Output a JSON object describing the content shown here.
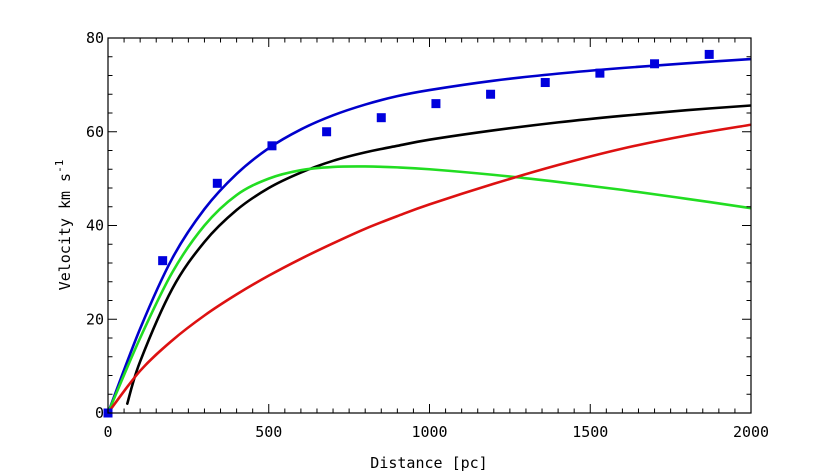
{
  "chart_data": {
    "type": "line",
    "xlabel": "Distance [pc]",
    "ylabel": "Velocity km s",
    "ylabel_superscript": "-1",
    "xlim": [
      0,
      2000
    ],
    "ylim": [
      0,
      80
    ],
    "x_ticks": [
      0,
      500,
      1000,
      1500,
      2000
    ],
    "y_ticks": [
      0,
      20,
      40,
      60,
      80
    ],
    "grid": false,
    "legend": "none",
    "series": [
      {
        "color": "#0000cc",
        "x": [
          0,
          100,
          200,
          300,
          400,
          500,
          600,
          700,
          800,
          900,
          1000,
          1200,
          1400,
          1600,
          1800,
          2000
        ],
        "y": [
          0,
          18,
          33,
          43.5,
          51,
          56.5,
          60.5,
          63.5,
          65.8,
          67.6,
          68.9,
          70.9,
          72.4,
          73.6,
          74.6,
          75.5
        ]
      },
      {
        "color": "#000000",
        "x": [
          60,
          100,
          200,
          300,
          400,
          500,
          600,
          700,
          800,
          900,
          1000,
          1200,
          1400,
          1600,
          1800,
          2000
        ],
        "y": [
          2,
          11,
          26.5,
          36.5,
          43.3,
          48,
          51.3,
          53.8,
          55.6,
          57,
          58.3,
          60.3,
          62,
          63.4,
          64.6,
          65.6
        ]
      },
      {
        "color": "#22dd22",
        "x": [
          0,
          100,
          200,
          300,
          400,
          500,
          600,
          700,
          800,
          900,
          1000,
          1200,
          1400,
          1600,
          1800,
          2000
        ],
        "y": [
          0,
          16,
          30,
          40,
          46.5,
          50,
          51.8,
          52.5,
          52.6,
          52.4,
          52,
          50.8,
          49.3,
          47.6,
          45.7,
          43.7
        ]
      },
      {
        "color": "#dd1111",
        "x": [
          0,
          100,
          200,
          300,
          400,
          500,
          600,
          700,
          800,
          900,
          1000,
          1200,
          1400,
          1600,
          1800,
          2000
        ],
        "y": [
          0,
          9,
          15.5,
          20.8,
          25.3,
          29.3,
          32.9,
          36.2,
          39.3,
          42,
          44.5,
          48.9,
          52.9,
          56.4,
          59.2,
          61.5
        ]
      }
    ],
    "points": {
      "color": "#0000dd",
      "x": [
        0,
        170,
        340,
        510,
        680,
        850,
        1020,
        1190,
        1360,
        1530,
        1700,
        1870
      ],
      "y": [
        0,
        32.5,
        49,
        57,
        60,
        63,
        66,
        68,
        70.5,
        72.5,
        74.5,
        76.5
      ]
    }
  }
}
